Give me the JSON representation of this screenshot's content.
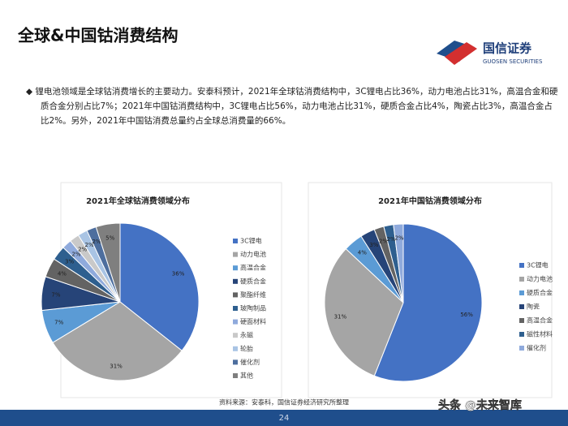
{
  "header": {
    "title": "全球&中国钴消费结构",
    "logo_cn": "国信证券",
    "logo_en": "GUOSEN SECURITIES"
  },
  "bullet": "锂电池领域是全球钴消费增长的主要动力。安泰科预计，2021年全球钴消费结构中，3C锂电占比36%，动力电池占比31%，高温合金和硬质合金分别占比7%；2021年中国钴消费结构中，3C锂电占比56%，动力电池占比31%，硬质合金占比4%，陶瓷占比3%，高温合金占比2%。另外，2021年中国钴消费总量约占全球总消费量的66%。",
  "chart_data": [
    {
      "type": "pie",
      "title": "2021年全球钴消费领域分布",
      "categories": [
        "3C锂电",
        "动力电池",
        "高温合金",
        "硬质合金",
        "聚酯纤维",
        "玻陶制品",
        "硬面材料",
        "永磁",
        "轮胎",
        "催化剂",
        "其他"
      ],
      "values": [
        36,
        31,
        7,
        7,
        4,
        3,
        2,
        2,
        2,
        2,
        5
      ],
      "value_labels": [
        "36%",
        "31%",
        "7%",
        "7%",
        "4%",
        "3%",
        "2%",
        "2%",
        "2%",
        "2%",
        "5%"
      ],
      "colors": [
        "#4472c4",
        "#a5a5a5",
        "#5b9bd5",
        "#264478",
        "#636363",
        "#2e5f8f",
        "#8faadc",
        "#c9c9c9",
        "#a9c4e4",
        "#4d6e9e",
        "#7f7f7f"
      ]
    },
    {
      "type": "pie",
      "title": "2021年中国钴消费领域分布",
      "categories": [
        "3C锂电",
        "动力电池",
        "硬质合金",
        "陶瓷",
        "高温合金",
        "磁性材料",
        "催化剂"
      ],
      "values": [
        56,
        31,
        4,
        3,
        2,
        2,
        2
      ],
      "value_labels": [
        "56%",
        "31%",
        "4%",
        "3%",
        "2%",
        "2%",
        "2%"
      ],
      "colors": [
        "#4472c4",
        "#a5a5a5",
        "#5b9bd5",
        "#264478",
        "#636363",
        "#2e5f8f",
        "#8faadc"
      ]
    }
  ],
  "source": "资料来源：安泰科，国信证券经济研究所整理",
  "page_number": "24",
  "watermark": "头条 @未来智库"
}
